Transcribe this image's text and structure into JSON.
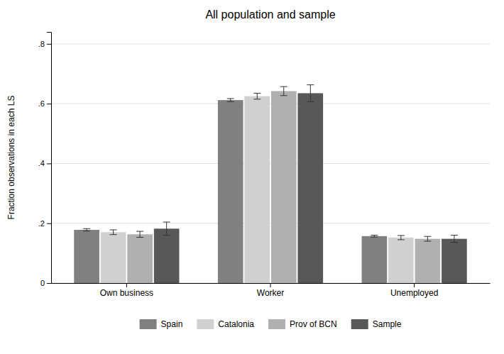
{
  "chart_data": {
    "type": "bar",
    "title": "All population and sample",
    "ylabel": "Fraction observations in each LS",
    "categories": [
      "Own business",
      "Worker",
      "Unemployed"
    ],
    "series": [
      {
        "name": "Spain",
        "color": "#808080",
        "values": [
          0.178,
          0.612,
          0.157
        ],
        "errors": [
          0.004,
          0.005,
          0.003
        ]
      },
      {
        "name": "Catalonia",
        "color": "#d0d0d0",
        "values": [
          0.17,
          0.625,
          0.152
        ],
        "errors": [
          0.008,
          0.01,
          0.007
        ]
      },
      {
        "name": "Prov of BCN",
        "color": "#b0b0b0",
        "values": [
          0.163,
          0.642,
          0.148
        ],
        "errors": [
          0.01,
          0.015,
          0.008
        ]
      },
      {
        "name": "Sample",
        "color": "#585858",
        "values": [
          0.182,
          0.635,
          0.148
        ],
        "errors": [
          0.022,
          0.028,
          0.012
        ]
      }
    ],
    "ylim": [
      0,
      0.84
    ],
    "yticks": [
      0,
      {
        "value": 0.2,
        "label": ".2"
      },
      {
        "value": 0.4,
        "label": ".4"
      },
      {
        "value": 0.6,
        "label": ".6"
      },
      {
        "value": 0.8,
        "label": ".8"
      }
    ],
    "grid": true,
    "legend": "bottom"
  }
}
